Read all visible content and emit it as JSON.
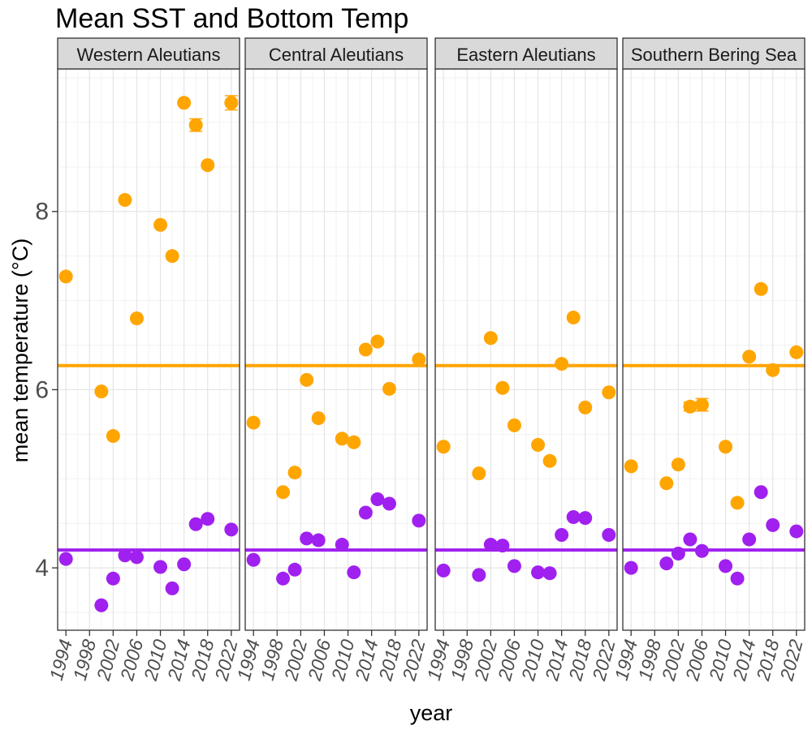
{
  "chart_data": {
    "type": "scatter",
    "title": "Mean SST and Bottom Temp",
    "xlabel": "year",
    "ylabel": "mean temperature (°C)",
    "xlim": [
      1992.6,
      2023.4
    ],
    "ylim": [
      3.3,
      9.6
    ],
    "x_ticks": [
      1994,
      1998,
      2002,
      2006,
      2010,
      2014,
      2018,
      2022
    ],
    "x_tick_labels": [
      "1994",
      "1998",
      "2002",
      "2006",
      "2010",
      "2014",
      "2018",
      "2022"
    ],
    "y_ticks": [
      4,
      6,
      8
    ],
    "y_tick_labels": [
      "4",
      "6",
      "8"
    ],
    "grid": true,
    "legend": "none",
    "colors": {
      "sst": "#FFA500",
      "bottom": "#A020F0"
    },
    "reference_lines": {
      "sst": 6.27,
      "bottom": 4.2
    },
    "panels": [
      {
        "name": "Western Aleutians",
        "series": [
          {
            "x": [
              1994,
              2000,
              2002,
              2004,
              2006,
              2010,
              2012,
              2014,
              2016,
              2018,
              2022
            ],
            "y": [
              7.27,
              5.98,
              5.48,
              8.13,
              6.8,
              7.85,
              7.5,
              9.22,
              8.97,
              8.52,
              9.22
            ],
            "err": [
              0,
              0,
              0,
              0,
              0,
              0,
              0,
              0,
              0.07,
              0,
              0.08
            ]
          },
          {
            "x": [
              1994,
              2000,
              2002,
              2004,
              2006,
              2010,
              2012,
              2014,
              2016,
              2018,
              2022
            ],
            "y": [
              4.1,
              3.58,
              3.88,
              4.14,
              4.12,
              4.01,
              3.77,
              4.04,
              4.49,
              4.55,
              4.43
            ],
            "err": [
              0,
              0,
              0,
              0,
              0,
              0,
              0,
              0,
              0,
              0,
              0
            ]
          }
        ]
      },
      {
        "name": "Central Aleutians",
        "series": [
          {
            "x": [
              1994,
              1999,
              2001,
              2003,
              2005,
              2009,
              2011,
              2013,
              2015,
              2017,
              2022
            ],
            "y": [
              5.63,
              4.85,
              5.07,
              6.11,
              5.68,
              5.45,
              5.41,
              6.45,
              6.54,
              6.01,
              6.34
            ],
            "err": [
              0,
              0,
              0,
              0,
              0,
              0,
              0,
              0,
              0,
              0,
              0
            ]
          },
          {
            "x": [
              1994,
              1999,
              2001,
              2003,
              2005,
              2009,
              2011,
              2013,
              2015,
              2017,
              2022
            ],
            "y": [
              4.09,
              3.88,
              3.98,
              4.33,
              4.31,
              4.26,
              3.95,
              4.62,
              4.77,
              4.72,
              4.53
            ],
            "err": [
              0,
              0,
              0,
              0,
              0,
              0,
              0,
              0,
              0,
              0,
              0
            ]
          }
        ]
      },
      {
        "name": "Eastern Aleutians",
        "series": [
          {
            "x": [
              1994,
              2000,
              2002,
              2004,
              2006,
              2010,
              2012,
              2014,
              2016,
              2018,
              2022
            ],
            "y": [
              5.36,
              5.06,
              6.58,
              6.02,
              5.6,
              5.38,
              5.2,
              6.29,
              6.81,
              5.8,
              5.97
            ],
            "err": [
              0,
              0,
              0,
              0,
              0,
              0,
              0,
              0,
              0,
              0,
              0
            ]
          },
          {
            "x": [
              1994,
              2000,
              2002,
              2004,
              2006,
              2010,
              2012,
              2014,
              2016,
              2018,
              2022
            ],
            "y": [
              3.97,
              3.92,
              4.26,
              4.25,
              4.02,
              3.95,
              3.94,
              4.37,
              4.57,
              4.56,
              4.37
            ],
            "err": [
              0,
              0,
              0,
              0,
              0,
              0,
              0,
              0,
              0,
              0,
              0
            ]
          }
        ]
      },
      {
        "name": "Southern Bering Sea",
        "series": [
          {
            "x": [
              1994,
              2000,
              2002,
              2004,
              2006,
              2010,
              2012,
              2014,
              2016,
              2018,
              2022
            ],
            "y": [
              5.14,
              4.95,
              5.16,
              5.81,
              5.83,
              5.36,
              4.73,
              6.37,
              7.13,
              6.22,
              6.42
            ],
            "err": [
              0,
              0,
              0,
              0.05,
              0.07,
              0,
              0,
              0,
              0,
              0,
              0
            ]
          },
          {
            "x": [
              1994,
              2000,
              2002,
              2004,
              2006,
              2010,
              2012,
              2014,
              2016,
              2018,
              2022
            ],
            "y": [
              4.0,
              4.05,
              4.16,
              4.32,
              4.19,
              4.02,
              3.88,
              4.32,
              4.85,
              4.48,
              4.41
            ],
            "err": [
              0,
              0,
              0,
              0,
              0,
              0,
              0,
              0,
              0,
              0,
              0
            ]
          }
        ]
      }
    ]
  }
}
